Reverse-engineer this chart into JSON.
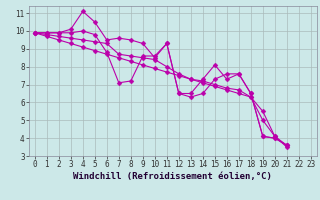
{
  "xlabel": "Windchill (Refroidissement éolien,°C)",
  "background_color": "#cce8e8",
  "grid_color": "#aabbbb",
  "line_color": "#bb00aa",
  "xlim": [
    -0.5,
    23.5
  ],
  "ylim": [
    3,
    11.4
  ],
  "xticks": [
    0,
    1,
    2,
    3,
    4,
    5,
    6,
    7,
    8,
    9,
    10,
    11,
    12,
    13,
    14,
    15,
    16,
    17,
    18,
    19,
    20,
    21,
    22,
    23
  ],
  "yticks": [
    3,
    4,
    5,
    6,
    7,
    8,
    9,
    10,
    11
  ],
  "series": [
    [
      9.9,
      9.9,
      9.9,
      10.1,
      11.1,
      10.5,
      9.5,
      9.6,
      9.5,
      9.3,
      8.5,
      9.3,
      6.5,
      6.5,
      7.3,
      8.1,
      7.3,
      7.6,
      6.5,
      4.1,
      4.0,
      3.6
    ],
    [
      9.9,
      9.9,
      9.9,
      9.9,
      10.0,
      9.8,
      8.8,
      7.1,
      7.2,
      8.6,
      8.6,
      9.3,
      6.5,
      6.3,
      6.5,
      7.3,
      7.6,
      7.6,
      6.5,
      4.1,
      4.0,
      3.6
    ],
    [
      9.9,
      9.8,
      9.7,
      9.6,
      9.5,
      9.4,
      9.3,
      8.7,
      8.6,
      8.5,
      8.4,
      8.0,
      7.6,
      7.3,
      7.2,
      7.0,
      6.8,
      6.7,
      6.3,
      5.0,
      4.1,
      3.6
    ],
    [
      9.9,
      9.7,
      9.5,
      9.3,
      9.1,
      8.9,
      8.7,
      8.5,
      8.3,
      8.1,
      7.9,
      7.7,
      7.5,
      7.3,
      7.1,
      6.9,
      6.7,
      6.5,
      6.3,
      5.5,
      4.1,
      3.5
    ]
  ],
  "markersize": 2.5,
  "linewidth": 0.8,
  "tick_fontsize": 5.5,
  "label_fontsize": 6.5
}
